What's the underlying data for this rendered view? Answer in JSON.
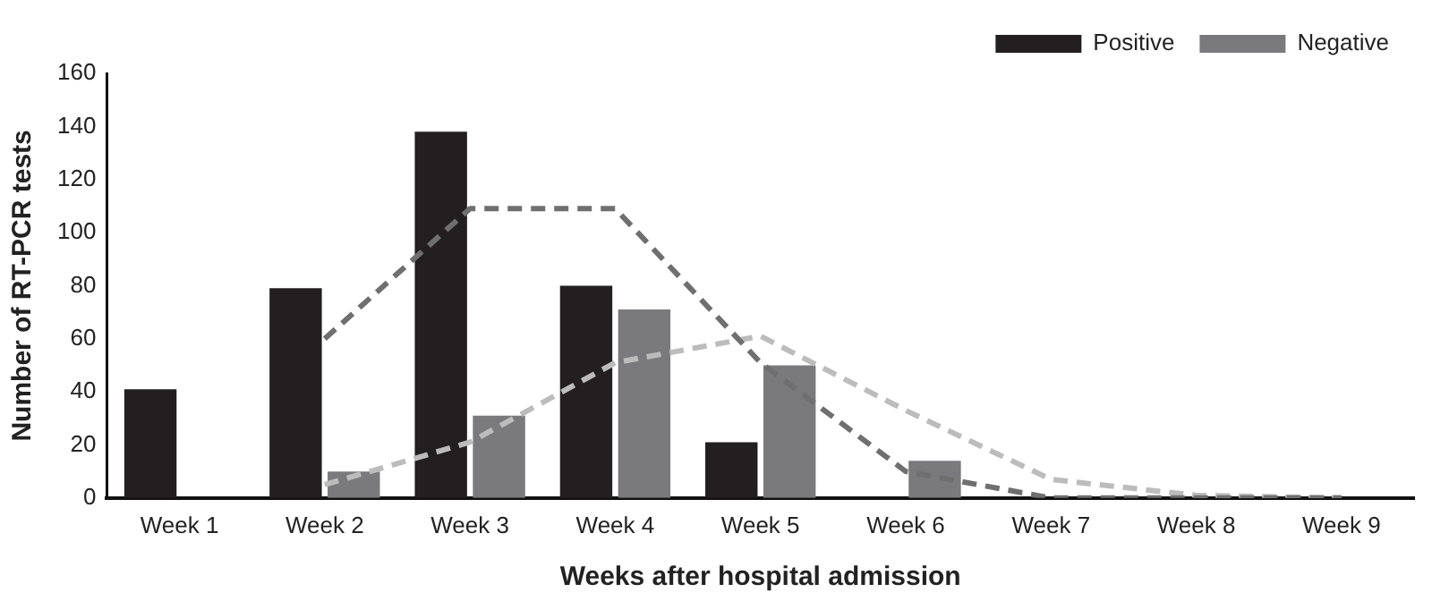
{
  "chart_data": {
    "type": "bar",
    "xlabel": "Weeks after hospital admission",
    "ylabel": "Number of RT-PCR tests",
    "categories": [
      "Week 1",
      "Week 2",
      "Week 3",
      "Week 4",
      "Week 5",
      "Week 6",
      "Week 7",
      "Week 8",
      "Week 9"
    ],
    "series": [
      {
        "name": "Positive",
        "color": "#231f20",
        "values": [
          41,
          79,
          138,
          80,
          21,
          0,
          0,
          0,
          0
        ]
      },
      {
        "name": "Negative",
        "color": "#7a7a7c",
        "values": [
          0,
          10,
          31,
          71,
          50,
          14,
          0,
          0,
          0
        ]
      },
      {
        "type": "line",
        "color": "#6f6f6f",
        "line_style": "dashed",
        "values": [
          null,
          60,
          109,
          109,
          51,
          10,
          0,
          0,
          0
        ]
      },
      {
        "type": "line",
        "color": "#bcbcbc",
        "line_style": "dashed",
        "values": [
          null,
          5,
          21,
          51,
          61,
          33,
          7,
          1,
          0
        ]
      }
    ],
    "ylim": [
      0,
      160
    ],
    "yticks": [
      0,
      20,
      40,
      60,
      80,
      100,
      120,
      140,
      160
    ],
    "grid": false,
    "legend": "top right",
    "marker": "none"
  }
}
